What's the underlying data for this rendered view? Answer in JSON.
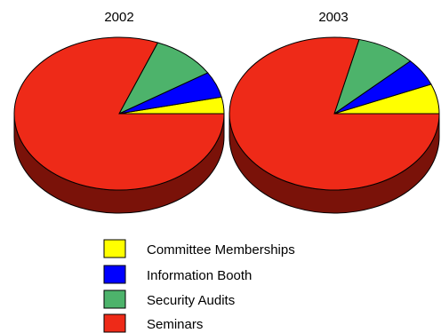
{
  "chart_data": [
    {
      "type": "pie",
      "style": "3d",
      "title": "2002",
      "categories": [
        "Committee Memberships",
        "Information Booth",
        "Security Audits",
        "Seminars"
      ],
      "values": [
        3.5,
        5.5,
        10,
        81
      ]
    },
    {
      "type": "pie",
      "style": "3d",
      "title": "2003",
      "categories": [
        "Committee Memberships",
        "Information Booth",
        "Security Audits",
        "Seminars"
      ],
      "values": [
        6.3,
        5.8,
        9.1,
        78.8
      ]
    }
  ],
  "legend": {
    "placement": "bottom",
    "items": [
      {
        "label": "Committee Memberships",
        "color": "#ffff00"
      },
      {
        "label": "Information Booth",
        "color": "#0000ff"
      },
      {
        "label": "Security Audits",
        "color": "#4db36b"
      },
      {
        "label": "Seminars",
        "color": "#ee2a18"
      }
    ]
  },
  "colors": {
    "side_shade": "#7a1209",
    "outline": "#000000"
  }
}
